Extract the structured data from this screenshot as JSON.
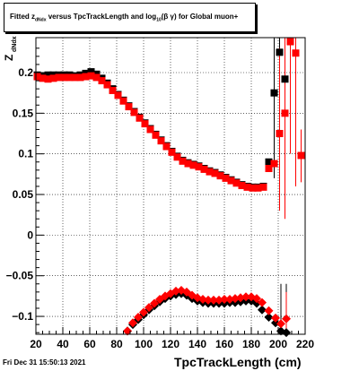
{
  "chart_data": {
    "type": "scatter",
    "title_parts": {
      "a": "Fitted  z",
      "a_sub": "dNdx",
      "b": " versus TpcTrackLength and log",
      "b_sub": "10",
      "c": "(β γ) for Global muon+"
    },
    "xlabel": "TpcTrackLength (cm)",
    "ylabel": "Z",
    "ylabel_sub": "dNdx",
    "xlim": [
      20,
      220
    ],
    "ylim": [
      -0.122,
      0.243
    ],
    "xticks": [
      "20",
      "40",
      "60",
      "80",
      "100",
      "120",
      "140",
      "160",
      "180",
      "200",
      "220"
    ],
    "yticks": [
      "−0.1",
      "−0.05",
      "0",
      "0.05",
      "0.1",
      "0.15",
      "0.2"
    ],
    "grid": true,
    "series": [
      {
        "color": "#000000",
        "marker": "square",
        "points": [
          [
            21,
            0.197
          ],
          [
            25,
            0.196
          ],
          [
            29,
            0.197
          ],
          [
            33,
            0.197
          ],
          [
            37,
            0.197
          ],
          [
            41,
            0.197
          ],
          [
            45,
            0.197
          ],
          [
            49,
            0.196
          ],
          [
            53,
            0.197
          ],
          [
            57,
            0.199
          ],
          [
            61,
            0.201
          ],
          [
            65,
            0.198
          ],
          [
            69,
            0.193
          ],
          [
            73,
            0.187
          ],
          [
            77,
            0.18
          ],
          [
            81,
            0.173
          ],
          [
            85,
            0.166
          ],
          [
            89,
            0.159
          ],
          [
            93,
            0.152
          ],
          [
            97,
            0.145
          ],
          [
            101,
            0.138
          ],
          [
            105,
            0.131
          ],
          [
            109,
            0.124
          ],
          [
            113,
            0.117
          ],
          [
            117,
            0.11
          ],
          [
            121,
            0.103
          ],
          [
            125,
            0.097
          ],
          [
            129,
            0.092
          ],
          [
            133,
            0.089
          ],
          [
            137,
            0.087
          ],
          [
            141,
            0.085
          ],
          [
            145,
            0.082
          ],
          [
            149,
            0.079
          ],
          [
            153,
            0.077
          ],
          [
            157,
            0.074
          ],
          [
            161,
            0.071
          ],
          [
            165,
            0.068
          ],
          [
            169,
            0.065
          ],
          [
            173,
            0.062
          ],
          [
            177,
            0.06
          ],
          [
            181,
            0.059
          ],
          [
            185,
            0.059
          ],
          [
            189,
            0.06
          ],
          [
            193,
            0.09
          ],
          [
            197,
            0.175
          ],
          [
            201,
            0.225
          ],
          [
            205,
            0.192
          ]
        ]
      },
      {
        "color": "#ff0000",
        "marker": "square",
        "points": [
          [
            21,
            0.195
          ],
          [
            25,
            0.193
          ],
          [
            29,
            0.192
          ],
          [
            33,
            0.193
          ],
          [
            37,
            0.194
          ],
          [
            41,
            0.194
          ],
          [
            45,
            0.194
          ],
          [
            49,
            0.194
          ],
          [
            53,
            0.194
          ],
          [
            57,
            0.195
          ],
          [
            61,
            0.196
          ],
          [
            65,
            0.194
          ],
          [
            69,
            0.19
          ],
          [
            73,
            0.185
          ],
          [
            77,
            0.178
          ],
          [
            81,
            0.172
          ],
          [
            85,
            0.165
          ],
          [
            89,
            0.158
          ],
          [
            93,
            0.151
          ],
          [
            97,
            0.144
          ],
          [
            101,
            0.137
          ],
          [
            105,
            0.13
          ],
          [
            109,
            0.123
          ],
          [
            113,
            0.116
          ],
          [
            117,
            0.109
          ],
          [
            121,
            0.102
          ],
          [
            125,
            0.096
          ],
          [
            129,
            0.091
          ],
          [
            133,
            0.088
          ],
          [
            137,
            0.086
          ],
          [
            141,
            0.084
          ],
          [
            145,
            0.081
          ],
          [
            149,
            0.078
          ],
          [
            153,
            0.076
          ],
          [
            157,
            0.073
          ],
          [
            161,
            0.07
          ],
          [
            165,
            0.067
          ],
          [
            169,
            0.064
          ],
          [
            173,
            0.061
          ],
          [
            177,
            0.059
          ],
          [
            181,
            0.058
          ],
          [
            185,
            0.058
          ],
          [
            189,
            0.059
          ],
          [
            193,
            0.082
          ],
          [
            197,
            0.088
          ],
          [
            201,
            0.125
          ],
          [
            205,
            0.15
          ],
          [
            209,
            0.238
          ],
          [
            213,
            0.224
          ],
          [
            217,
            0.098
          ]
        ]
      },
      {
        "color": "#000000",
        "marker": "diamond",
        "points": [
          [
            88,
            -0.118
          ],
          [
            92,
            -0.11
          ],
          [
            96,
            -0.104
          ],
          [
            100,
            -0.098
          ],
          [
            104,
            -0.092
          ],
          [
            108,
            -0.087
          ],
          [
            112,
            -0.082
          ],
          [
            116,
            -0.078
          ],
          [
            120,
            -0.075
          ],
          [
            124,
            -0.073
          ],
          [
            128,
            -0.072
          ],
          [
            132,
            -0.074
          ],
          [
            136,
            -0.078
          ],
          [
            140,
            -0.081
          ],
          [
            144,
            -0.083
          ],
          [
            148,
            -0.084
          ],
          [
            152,
            -0.084
          ],
          [
            156,
            -0.084
          ],
          [
            160,
            -0.084
          ],
          [
            164,
            -0.083
          ],
          [
            168,
            -0.083
          ],
          [
            172,
            -0.082
          ],
          [
            176,
            -0.081
          ],
          [
            180,
            -0.081
          ],
          [
            184,
            -0.084
          ],
          [
            188,
            -0.092
          ],
          [
            193,
            -0.101
          ],
          [
            198,
            -0.108
          ],
          [
            202,
            -0.118
          ],
          [
            206,
            -0.12
          ]
        ]
      },
      {
        "color": "#ff0000",
        "marker": "diamond",
        "points": [
          [
            88,
            -0.118
          ],
          [
            92,
            -0.108
          ],
          [
            96,
            -0.101
          ],
          [
            100,
            -0.095
          ],
          [
            104,
            -0.089
          ],
          [
            108,
            -0.084
          ],
          [
            112,
            -0.079
          ],
          [
            116,
            -0.075
          ],
          [
            120,
            -0.072
          ],
          [
            124,
            -0.069
          ],
          [
            128,
            -0.068
          ],
          [
            132,
            -0.07
          ],
          [
            136,
            -0.074
          ],
          [
            140,
            -0.077
          ],
          [
            144,
            -0.079
          ],
          [
            148,
            -0.08
          ],
          [
            152,
            -0.08
          ],
          [
            156,
            -0.08
          ],
          [
            160,
            -0.079
          ],
          [
            164,
            -0.079
          ],
          [
            168,
            -0.078
          ],
          [
            172,
            -0.077
          ],
          [
            176,
            -0.076
          ],
          [
            180,
            -0.076
          ],
          [
            184,
            -0.078
          ],
          [
            188,
            -0.083
          ],
          [
            193,
            -0.093
          ],
          [
            198,
            -0.102
          ],
          [
            202,
            -0.109
          ],
          [
            206,
            -0.103
          ]
        ]
      }
    ],
    "error_bars": [
      {
        "x": 197,
        "lo": 0.07,
        "hi": 0.243,
        "color": "#000000"
      },
      {
        "x": 201,
        "lo": 0.05,
        "hi": 0.243,
        "color": "#000000"
      },
      {
        "x": 205,
        "lo": 0.06,
        "hi": 0.243,
        "color": "#000000"
      },
      {
        "x": 201,
        "lo": 0.03,
        "hi": 0.23,
        "color": "#ff0000"
      },
      {
        "x": 205,
        "lo": 0.02,
        "hi": 0.243,
        "color": "#ff0000"
      },
      {
        "x": 209,
        "lo": 0.1,
        "hi": 0.243,
        "color": "#ff0000"
      },
      {
        "x": 213,
        "lo": 0.06,
        "hi": 0.243,
        "color": "#ff0000"
      },
      {
        "x": 217,
        "lo": 0.065,
        "hi": 0.13,
        "color": "#ff0000"
      },
      {
        "x": 202,
        "lo": -0.122,
        "hi": -0.06,
        "color": "#000000"
      },
      {
        "x": 206,
        "lo": -0.122,
        "hi": -0.06,
        "color": "#000000"
      },
      {
        "x": 206,
        "lo": -0.122,
        "hi": -0.07,
        "color": "#ff0000"
      }
    ]
  },
  "footer": {
    "timestamp": "Fri Dec 31 15:50:13 2021"
  }
}
